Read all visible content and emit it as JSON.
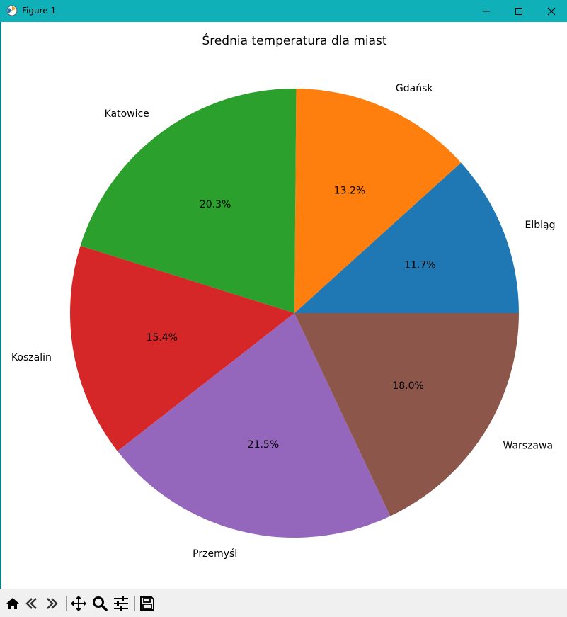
{
  "window": {
    "title": "Figure 1",
    "title_bar_color": "#0fb0b8"
  },
  "toolbar": {
    "buttons": [
      {
        "name": "home-icon",
        "tooltip": "Home"
      },
      {
        "name": "back-icon",
        "tooltip": "Back"
      },
      {
        "name": "forward-icon",
        "tooltip": "Forward"
      },
      {
        "name": "pan-icon",
        "tooltip": "Pan"
      },
      {
        "name": "zoom-icon",
        "tooltip": "Zoom"
      },
      {
        "name": "subplots-icon",
        "tooltip": "Configure subplots"
      },
      {
        "name": "save-icon",
        "tooltip": "Save"
      }
    ]
  },
  "chart_data": {
    "type": "pie",
    "title": "Średnia temperatura dla miast",
    "start_angle_deg": 0,
    "direction": "counterclockwise",
    "slices": [
      {
        "label": "Elbląg",
        "percent": 11.7,
        "pct_label": "11.7%",
        "color": "#1f77b4"
      },
      {
        "label": "Gdańsk",
        "percent": 13.2,
        "pct_label": "13.2%",
        "color": "#ff7f0e"
      },
      {
        "label": "Katowice",
        "percent": 20.3,
        "pct_label": "20.3%",
        "color": "#2ca02c"
      },
      {
        "label": "Koszalin",
        "percent": 15.4,
        "pct_label": "15.4%",
        "color": "#d62728"
      },
      {
        "label": "Przemyśl",
        "percent": 21.5,
        "pct_label": "21.5%",
        "color": "#9467bd"
      },
      {
        "label": "Warszawa",
        "percent": 18.0,
        "pct_label": "18.0%",
        "color": "#8c564b"
      }
    ]
  }
}
